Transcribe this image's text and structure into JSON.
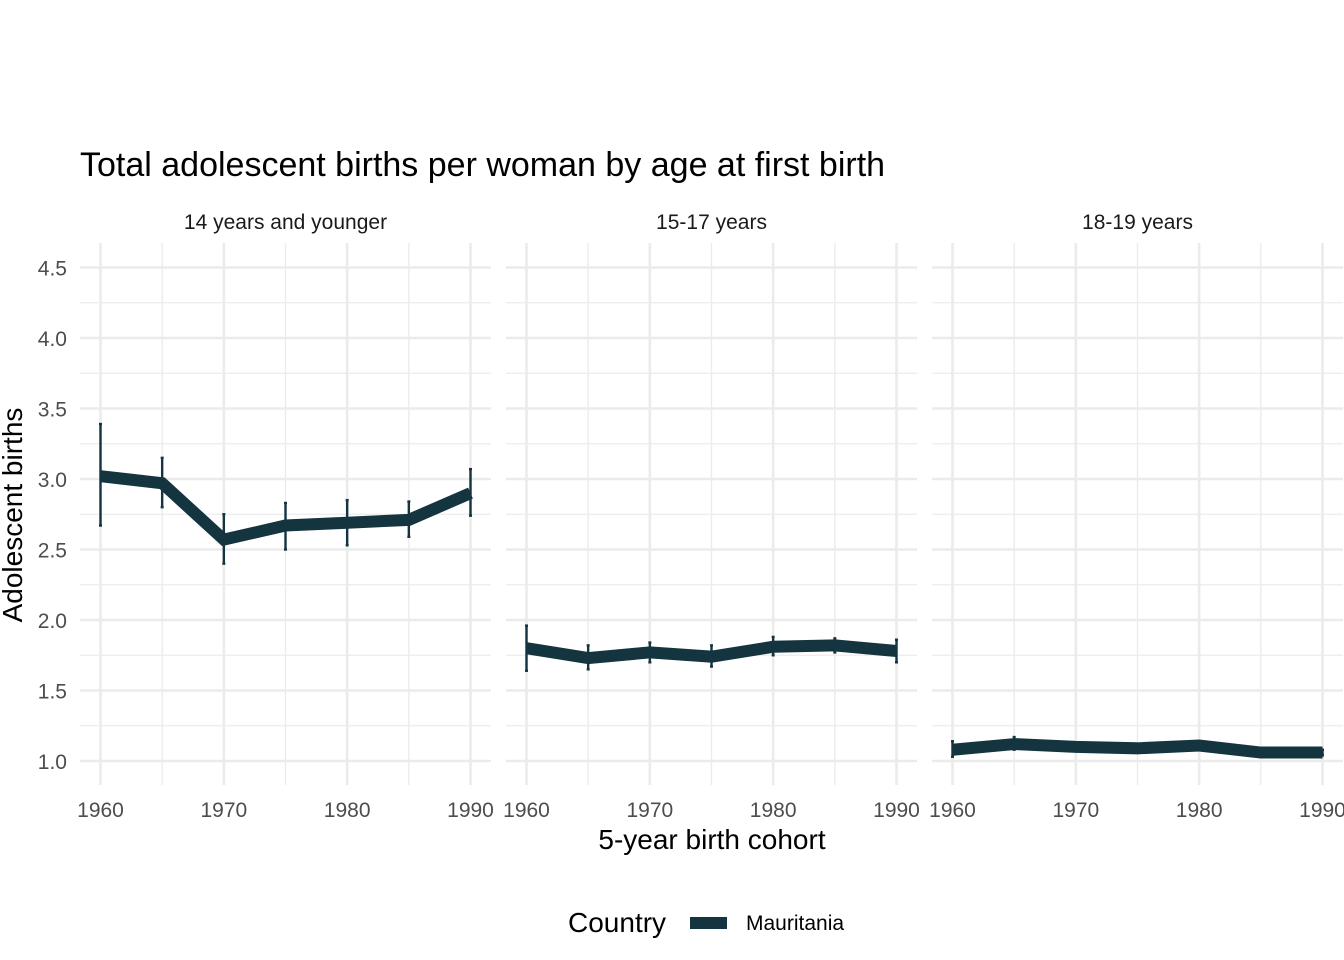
{
  "chart_data": {
    "type": "line",
    "title": "Total adolescent births per woman by age at first birth",
    "xlabel": "5-year birth cohort",
    "ylabel": "Adolescent births",
    "xlim": [
      1960,
      1990
    ],
    "ylim": [
      0.85,
      4.6
    ],
    "x_ticks": [
      "1960",
      "1970",
      "1980",
      "1990"
    ],
    "x_tick_values": [
      1960,
      1970,
      1980,
      1990
    ],
    "y_ticks": [
      "1.0",
      "1.5",
      "2.0",
      "2.5",
      "3.0",
      "3.5",
      "4.0",
      "4.5"
    ],
    "y_tick_values": [
      1.0,
      1.5,
      2.0,
      2.5,
      3.0,
      3.5,
      4.0,
      4.5
    ],
    "x": [
      1960,
      1965,
      1970,
      1975,
      1980,
      1985,
      1990
    ],
    "series_color": "#14343f",
    "legend": {
      "title": "Country",
      "entries": [
        "Mauritania"
      ],
      "position": "bottom"
    },
    "panels": [
      {
        "label": "14 years and younger",
        "series": [
          {
            "name": "Mauritania",
            "values": [
              3.02,
              2.97,
              2.57,
              2.67,
              2.69,
              2.71,
              2.9
            ],
            "lower": [
              2.67,
              2.8,
              2.4,
              2.5,
              2.53,
              2.59,
              2.74
            ],
            "upper": [
              3.39,
              3.15,
              2.75,
              2.83,
              2.85,
              2.84,
              3.07
            ]
          }
        ]
      },
      {
        "label": "15-17 years",
        "series": [
          {
            "name": "Mauritania",
            "values": [
              1.8,
              1.73,
              1.77,
              1.74,
              1.81,
              1.82,
              1.78
            ],
            "lower": [
              1.64,
              1.65,
              1.7,
              1.67,
              1.75,
              1.77,
              1.7
            ],
            "upper": [
              1.96,
              1.82,
              1.84,
              1.82,
              1.88,
              1.87,
              1.86
            ]
          }
        ]
      },
      {
        "label": "18-19 years",
        "series": [
          {
            "name": "Mauritania",
            "values": [
              1.08,
              1.12,
              1.1,
              1.09,
              1.11,
              1.06,
              1.06
            ],
            "lower": [
              1.03,
              1.08,
              1.07,
              1.06,
              1.08,
              1.04,
              1.04
            ],
            "upper": [
              1.14,
              1.17,
              1.13,
              1.12,
              1.14,
              1.08,
              1.08
            ]
          }
        ]
      }
    ]
  }
}
